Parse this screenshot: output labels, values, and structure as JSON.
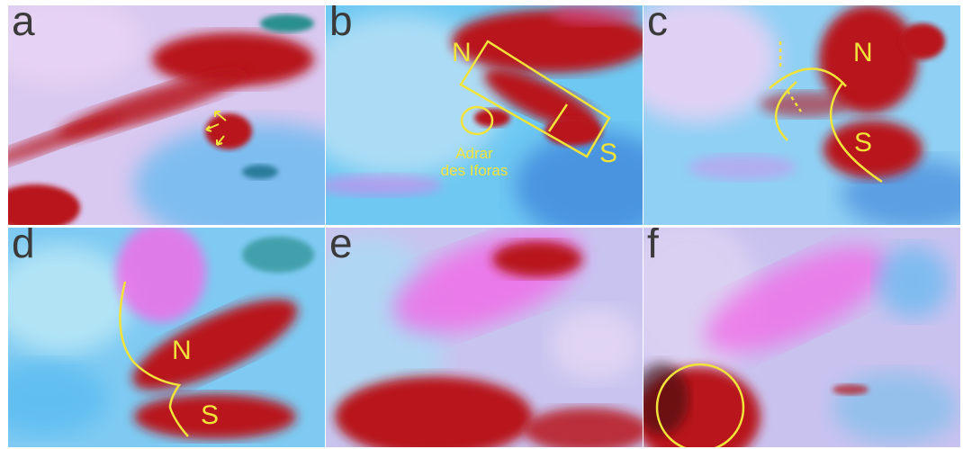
{
  "panels": [
    {
      "letter": "a",
      "labels": []
    },
    {
      "letter": "b",
      "labels": [
        "N",
        "S",
        "Adrar",
        "des Iforas"
      ]
    },
    {
      "letter": "c",
      "labels": [
        "N",
        "S"
      ]
    },
    {
      "letter": "d",
      "labels": [
        "N",
        "S"
      ]
    },
    {
      "letter": "e",
      "labels": []
    },
    {
      "letter": "f",
      "labels": []
    }
  ],
  "colors": {
    "cloud_red": "#b8141c",
    "cloud_magenta": "#f06ee8",
    "surface_cyan": "#4fb8f0",
    "sky_lavender": "#d9c8f0",
    "annotation_yellow": "#f2e33a"
  }
}
